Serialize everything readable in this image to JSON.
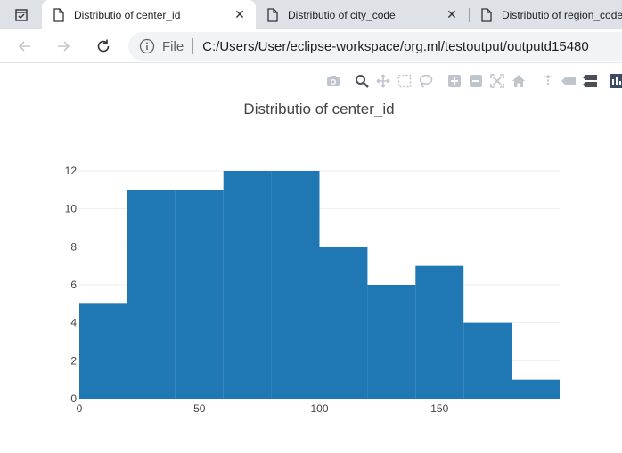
{
  "browser": {
    "tabs": [
      {
        "title": "Distributio of center_id",
        "active": true
      },
      {
        "title": "Distributio of city_code",
        "active": false
      },
      {
        "title": "Distributio of region_code",
        "active": false
      }
    ],
    "address": {
      "scheme_label": "File",
      "url": "C:/Users/User/eclipse-workspace/org.ml/testoutput/outputd15480"
    }
  },
  "chart_data": {
    "type": "bar",
    "title": "Distributio of center_id",
    "xlabel": "",
    "ylabel": "",
    "bins": [
      {
        "x0": 0,
        "x1": 20,
        "value": 5
      },
      {
        "x0": 20,
        "x1": 40,
        "value": 11
      },
      {
        "x0": 40,
        "x1": 60,
        "value": 11
      },
      {
        "x0": 60,
        "x1": 80,
        "value": 12
      },
      {
        "x0": 80,
        "x1": 100,
        "value": 12
      },
      {
        "x0": 100,
        "x1": 120,
        "value": 8
      },
      {
        "x0": 120,
        "x1": 140,
        "value": 6
      },
      {
        "x0": 140,
        "x1": 160,
        "value": 7
      },
      {
        "x0": 160,
        "x1": 180,
        "value": 4
      },
      {
        "x0": 180,
        "x1": 200,
        "value": 1
      }
    ],
    "xlim": [
      0,
      200
    ],
    "ylim": [
      0,
      12
    ],
    "x_ticks": [
      0,
      50,
      100,
      150
    ],
    "y_ticks": [
      0,
      2,
      4,
      6,
      8,
      10,
      12
    ],
    "bar_color": "#1f77b4",
    "grid": true
  },
  "colors": {
    "tab_strip": "#dee1e6",
    "grid": "#eeeeee",
    "text": "#444444"
  },
  "modebar_icons": [
    "camera-icon",
    "zoom-icon",
    "pan-icon",
    "box-select-icon",
    "lasso-icon",
    "zoom-in-icon",
    "zoom-out-icon",
    "autoscale-icon",
    "reset-axes-icon",
    "spike-lines-icon",
    "hover-closest-icon",
    "hover-compare-icon",
    "plotly-logo-icon"
  ]
}
